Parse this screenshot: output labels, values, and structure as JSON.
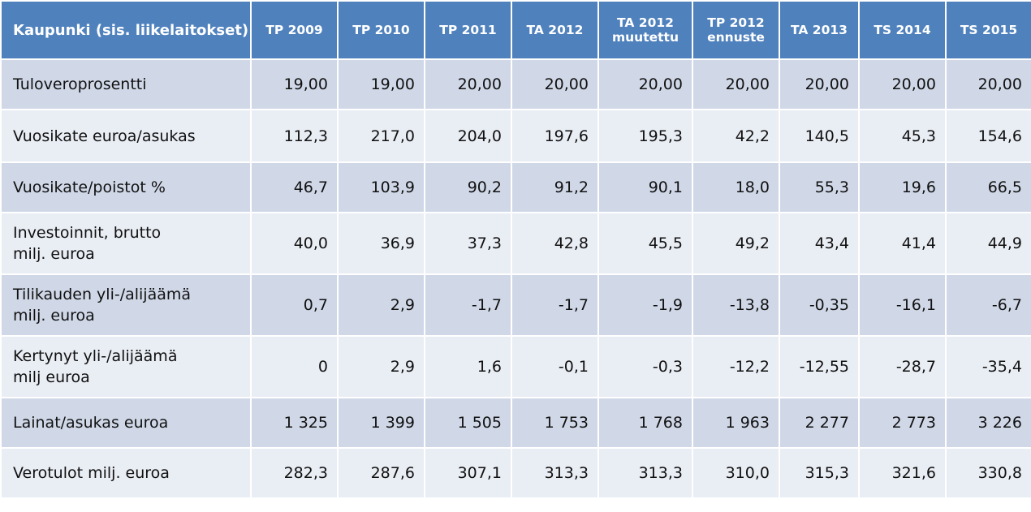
{
  "table": {
    "headers": [
      "Kaupunki (sis. liikelaitokset)",
      "TP 2009",
      "TP 2010",
      "TP 2011",
      "TA 2012",
      "TA 2012 muutettu",
      "TP 2012 ennuste",
      "TA 2013",
      "TS 2014",
      "TS 2015"
    ],
    "rows": [
      {
        "label": "Tuloveroprosentti",
        "values": [
          "19,00",
          "19,00",
          "20,00",
          "20,00",
          "20,00",
          "20,00",
          "20,00",
          "20,00",
          "20,00"
        ]
      },
      {
        "label": "Vuosikate euroa/asukas",
        "values": [
          "112,3",
          "217,0",
          "204,0",
          "197,6",
          "195,3",
          "42,2",
          "140,5",
          "45,3",
          "154,6"
        ]
      },
      {
        "label": "Vuosikate/poistot %",
        "values": [
          "46,7",
          "103,9",
          "90,2",
          "91,2",
          "90,1",
          "18,0",
          "55,3",
          "19,6",
          "66,5"
        ]
      },
      {
        "label": "Investoinnit, brutto\nmilj. euroa",
        "values": [
          "40,0",
          "36,9",
          "37,3",
          "42,8",
          "45,5",
          "49,2",
          "43,4",
          "41,4",
          "44,9"
        ]
      },
      {
        "label": "Tilikauden yli-/alijäämä\nmilj. euroa",
        "values": [
          "0,7",
          "2,9",
          "-1,7",
          "-1,7",
          "-1,9",
          "-13,8",
          "-0,35",
          "-16,1",
          "-6,7"
        ]
      },
      {
        "label": "Kertynyt yli-/alijäämä\nmilj euroa",
        "values": [
          "0",
          "2,9",
          "1,6",
          "-0,1",
          "-0,3",
          "-12,2",
          "-12,55",
          "-28,7",
          "-35,4"
        ]
      },
      {
        "label": "Lainat/asukas euroa",
        "values": [
          "1 325",
          "1 399",
          "1 505",
          "1 753",
          "1 768",
          "1 963",
          "2 277",
          "2 773",
          "3 226"
        ]
      },
      {
        "label": "Verotulot milj. euroa",
        "values": [
          "282,3",
          "287,6",
          "307,1",
          "313,3",
          "313,3",
          "310,0",
          "315,3",
          "321,6",
          "330,8"
        ]
      }
    ]
  },
  "colors": {
    "header_bg": "#4f81bd",
    "row_odd_bg": "#d0d8e8",
    "row_even_bg": "#e9edf4"
  }
}
